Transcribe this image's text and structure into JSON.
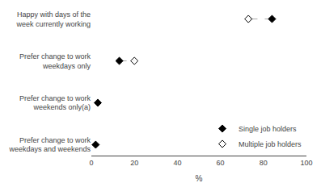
{
  "chart_data": {
    "type": "scatter",
    "orientation": "horizontal",
    "categories": [
      "Happy with days of the\nweek currently working",
      "Prefer change to work\nweekdays only",
      "Prefer change to work\nweekends only(a)",
      "Prefer change to work\nweekdays and weekends"
    ],
    "series": [
      {
        "name": "Single job holders",
        "color": "#000000",
        "marker": "diamond",
        "values": [
          84,
          13,
          3,
          2
        ]
      },
      {
        "name": "Multiple job holders",
        "color": "#000000",
        "marker": "diamond-open",
        "values": [
          73,
          20,
          null,
          null
        ]
      }
    ],
    "xlabel": "%",
    "xlim": [
      0,
      100
    ],
    "xticks": [
      0,
      20,
      40,
      60,
      80,
      100
    ],
    "line_style": "dashed",
    "grid": false,
    "legend": "lower right"
  }
}
